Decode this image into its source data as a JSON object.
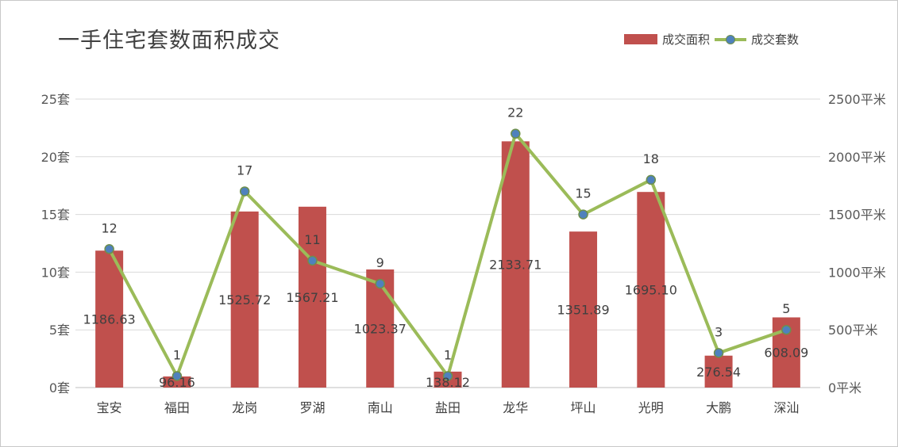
{
  "chart_data": {
    "type": "bar",
    "title": "一手住宅套数面积成交",
    "categories": [
      "宝安",
      "福田",
      "龙岗",
      "罗湖",
      "南山",
      "盐田",
      "龙华",
      "坪山",
      "光明",
      "大鹏",
      "深汕"
    ],
    "series": [
      {
        "name": "成交面积",
        "type": "bar",
        "axis": "right",
        "values": [
          1186.63,
          96.16,
          1525.72,
          1567.21,
          1023.37,
          138.12,
          2133.71,
          1351.89,
          1695.1,
          276.54,
          608.09
        ],
        "labels": [
          "1186.63",
          "96.16",
          "1525.72",
          "1567.21",
          "1023.37",
          "138.12",
          "2133.71",
          "1351.89",
          "1695.10",
          "276.54",
          "608.09"
        ],
        "color": "#c0504d"
      },
      {
        "name": "成交套数",
        "type": "line",
        "axis": "left",
        "values": [
          12,
          1,
          17,
          11,
          9,
          1,
          22,
          15,
          18,
          3,
          5
        ],
        "labels": [
          "12",
          "1",
          "17",
          "11",
          "9",
          "1",
          "22",
          "15",
          "18",
          "3",
          "5"
        ],
        "color": "#9bbb59",
        "marker_color": "#4f81bd"
      }
    ],
    "left_axis": {
      "ylim": [
        0,
        25
      ],
      "ticks": [
        0,
        5,
        10,
        15,
        20,
        25
      ],
      "tick_labels": [
        "0套",
        "5套",
        "10套",
        "15套",
        "20套",
        "25套"
      ]
    },
    "right_axis": {
      "ylim": [
        0,
        2500
      ],
      "ticks": [
        0,
        500,
        1000,
        1500,
        2000,
        2500
      ],
      "tick_labels": [
        "0平米",
        "500平米",
        "1000平米",
        "1500平米",
        "2000平米",
        "2500平米"
      ]
    },
    "grid": true,
    "legend": "top-right"
  }
}
